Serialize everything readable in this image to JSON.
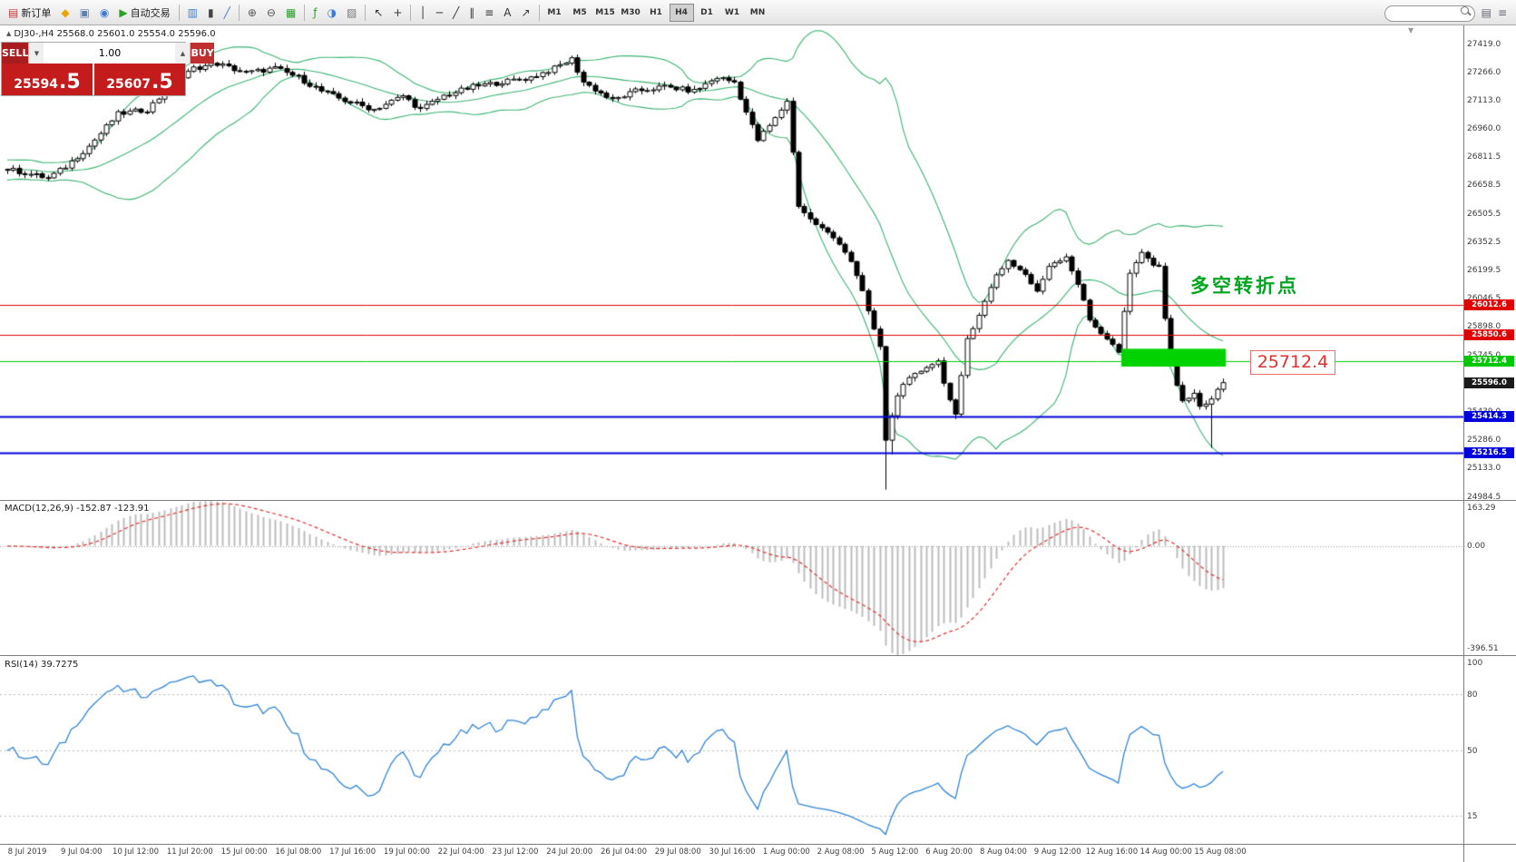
{
  "toolbar": {
    "timeframes": [
      "M1",
      "M5",
      "M15",
      "M30",
      "H1",
      "H4",
      "D1",
      "W1",
      "MN"
    ],
    "active_timeframe": "H4"
  },
  "toolbar_items": [
    {
      "name": "new-order-button",
      "glyph": "▤",
      "color": "#c03a3a",
      "label": "新订单"
    },
    {
      "name": "mql5-community-icon",
      "glyph": "◆",
      "color": "#eba400"
    },
    {
      "name": "chart-window-icon",
      "glyph": "▣",
      "color": "#5b80b2"
    },
    {
      "name": "data-window-icon",
      "glyph": "◉",
      "color": "#3b7bd4"
    },
    {
      "name": "autotrade-button",
      "glyph": "▶",
      "color": "#27a327",
      "label": "自动交易"
    },
    {
      "sep": true
    },
    {
      "name": "bar-chart-button",
      "glyph": "▥",
      "color": "#3b7bd4"
    },
    {
      "name": "candlestick-chart-button",
      "glyph": "▮",
      "color": "#444444"
    },
    {
      "name": "line-chart-button",
      "glyph": "╱",
      "color": "#3b7bd4"
    },
    {
      "sep": true
    },
    {
      "name": "zoom-in-button",
      "glyph": "⊕",
      "color": "#555555"
    },
    {
      "name": "zoom-out-button",
      "glyph": "⊖",
      "color": "#555555"
    },
    {
      "name": "tile-windows-button",
      "glyph": "▦",
      "color": "#27a327"
    },
    {
      "sep": true
    },
    {
      "name": "indicators-button",
      "glyph": "ƒ",
      "color": "#27a327"
    },
    {
      "name": "periods-button",
      "glyph": "◑",
      "color": "#3b7bd4"
    },
    {
      "name": "templates-button",
      "glyph": "▨",
      "color": "#777777"
    },
    {
      "sep": true
    },
    {
      "name": "cursor-button",
      "glyph": "↖",
      "color": "#333333"
    },
    {
      "name": "crosshair-button",
      "glyph": "+",
      "color": "#333333"
    },
    {
      "sep": true
    },
    {
      "name": "vertical-line-button",
      "glyph": "│",
      "color": "#333333"
    },
    {
      "name": "horizontal-line-button",
      "glyph": "─",
      "color": "#333333"
    },
    {
      "name": "trendline-button",
      "glyph": "╱",
      "color": "#333333"
    },
    {
      "name": "channel-button",
      "glyph": "∥",
      "color": "#333333"
    },
    {
      "name": "fibonacci-button",
      "glyph": "≡",
      "color": "#333333"
    },
    {
      "name": "text-button",
      "glyph": "A",
      "color": "#333333"
    },
    {
      "name": "arrows-button",
      "glyph": "↗",
      "color": "#333333"
    },
    {
      "sep": true
    }
  ],
  "icons": {
    "header_marker": "▲",
    "shift_marker": "▼",
    "vol_down": "▼",
    "vol_up": "▲",
    "layout": "▤",
    "menu": "≡"
  },
  "chart_header": "DJ30-,H4  25568.0 25601.0 25554.0 25596.0",
  "trade_panel": {
    "sell_label": "SELL",
    "buy_label": "BUY",
    "volume": "1.00",
    "sell_price_main": "25594",
    "sell_price_frac": ".5",
    "buy_price_main": "25607",
    "buy_price_frac": ".5"
  },
  "annotation_text": "多空转折点",
  "price_callout": "25712.4",
  "price_axis_ticks": [
    "27419.0",
    "27266.0",
    "27113.0",
    "26960.0",
    "26811.5",
    "26658.5",
    "26505.5",
    "26352.5",
    "26199.5",
    "26046.5",
    "25898.0",
    "25745.0",
    "25592.0",
    "25439.0",
    "25286.0",
    "25133.0",
    "24984.5"
  ],
  "macd_panel": {
    "label": "MACD(12,26,9) -152.87 -123.91",
    "ticks": [
      "163.29",
      "0.00",
      "-396.51"
    ]
  },
  "rsi_panel": {
    "label": "RSI(14) 39.7275",
    "ticks": [
      "100",
      "80",
      "50",
      "15"
    ]
  },
  "time_axis": [
    "8 Jul 2019",
    "9 Jul 04:00",
    "10 Jul 12:00",
    "11 Jul 20:00",
    "15 Jul 00:00",
    "16 Jul 08:00",
    "17 Jul 16:00",
    "19 Jul 00:00",
    "22 Jul 04:00",
    "23 Jul 12:00",
    "24 Jul 20:00",
    "26 Jul 04:00",
    "29 Jul 08:00",
    "30 Jul 16:00",
    "1 Aug 00:00",
    "2 Aug 08:00",
    "5 Aug 12:00",
    "6 Aug 20:00",
    "8 Aug 04:00",
    "9 Aug 12:00",
    "12 Aug 16:00",
    "14 Aug 00:00",
    "15 Aug 08:00"
  ],
  "chart_data": {
    "type": "candlestick",
    "symbol": "DJ30-",
    "timeframe": "H4",
    "n_candles": 210,
    "last_close": 25596.0,
    "display_ohlc": {
      "open": 25568.0,
      "high": 25601.0,
      "low": 25554.0,
      "close": 25596.0
    },
    "price_anchors": [
      [
        0,
        26744
      ],
      [
        7,
        26695
      ],
      [
        10,
        26757
      ],
      [
        14,
        26867
      ],
      [
        19,
        27040
      ],
      [
        24,
        27064
      ],
      [
        28,
        27187
      ],
      [
        32,
        27286
      ],
      [
        36,
        27311
      ],
      [
        41,
        27261
      ],
      [
        46,
        27286
      ],
      [
        50,
        27237
      ],
      [
        54,
        27163
      ],
      [
        58,
        27113
      ],
      [
        63,
        27064
      ],
      [
        68,
        27138
      ],
      [
        71,
        27064
      ],
      [
        75,
        27138
      ],
      [
        80,
        27187
      ],
      [
        85,
        27212
      ],
      [
        90,
        27237
      ],
      [
        94,
        27286
      ],
      [
        97,
        27335
      ],
      [
        99,
        27212
      ],
      [
        104,
        27113
      ],
      [
        108,
        27163
      ],
      [
        113,
        27187
      ],
      [
        118,
        27163
      ],
      [
        122,
        27237
      ],
      [
        125,
        27212
      ],
      [
        127,
        27050
      ],
      [
        129,
        26900
      ],
      [
        132,
        27015
      ],
      [
        134,
        27113
      ],
      [
        136,
        26550
      ],
      [
        138,
        26473
      ],
      [
        140,
        26424
      ],
      [
        143,
        26350
      ],
      [
        145,
        26251
      ],
      [
        147,
        26079
      ],
      [
        150,
        25783
      ],
      [
        151,
        25291
      ],
      [
        153,
        25537
      ],
      [
        155,
        25611
      ],
      [
        158,
        25685
      ],
      [
        160,
        25710
      ],
      [
        162,
        25500
      ],
      [
        163,
        25414
      ],
      [
        165,
        25833
      ],
      [
        168,
        26030
      ],
      [
        170,
        26178
      ],
      [
        172,
        26252
      ],
      [
        175,
        26178
      ],
      [
        177,
        26079
      ],
      [
        179,
        26227
      ],
      [
        182,
        26276
      ],
      [
        184,
        26128
      ],
      [
        186,
        25931
      ],
      [
        189,
        25833
      ],
      [
        191,
        25759
      ],
      [
        193,
        26178
      ],
      [
        195,
        26301
      ],
      [
        196,
        26252
      ],
      [
        198,
        26227
      ],
      [
        199,
        25931
      ],
      [
        201,
        25586
      ],
      [
        202,
        25488
      ],
      [
        204,
        25537
      ],
      [
        205,
        25463
      ],
      [
        207,
        25512
      ],
      [
        209,
        25596
      ]
    ],
    "wick_low_overrides": {
      "151": 25020,
      "152": 25210,
      "163": 25400,
      "207": 25245
    },
    "hlines": [
      {
        "price": 26012.6,
        "label": "26012.6",
        "color": "#e00000",
        "width": 1,
        "draw": true
      },
      {
        "price": 25850.6,
        "label": "25850.6",
        "color": "#e00000",
        "width": 1,
        "draw": true
      },
      {
        "price": 25712.4,
        "label": "25712.4",
        "color": "#00c800",
        "width": 1,
        "draw": true
      },
      {
        "price": 25596.0,
        "label": "25596.0",
        "color": "#1a1a1a",
        "width": 1,
        "draw": false
      },
      {
        "price": 25414.3,
        "label": "25414.3",
        "color": "#0000dc",
        "width": 2,
        "draw": true
      },
      {
        "price": 25216.5,
        "label": "25216.5",
        "color": "#0000dc",
        "width": 2,
        "draw": true
      }
    ],
    "zone": {
      "from_index": 192,
      "to_index": 209,
      "price_top": 25778,
      "price_bottom": 25682,
      "color": "#00d300"
    },
    "bollinger": {
      "period": 20,
      "deviation": 2,
      "color": "#3cb371"
    },
    "macd": {
      "fast": 12,
      "slow": 26,
      "signal": 9,
      "range_max": 163.29,
      "range_min": -396.51,
      "hist_color": "#bcbcbc",
      "signal_color": "#e03030"
    },
    "rsi": {
      "period": 14,
      "levels": [
        80,
        50,
        15
      ],
      "color": "#2f83d6"
    }
  }
}
